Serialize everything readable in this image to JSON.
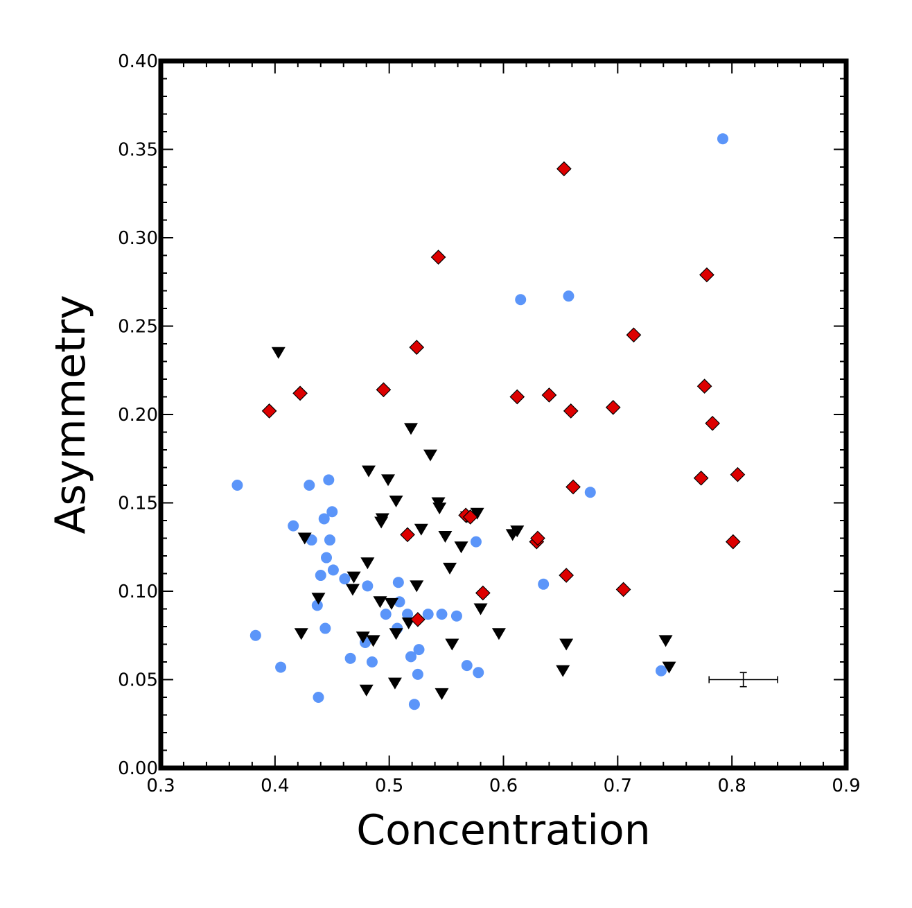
{
  "chart_data": {
    "type": "scatter",
    "title": "",
    "xlabel": "Concentration",
    "ylabel": "Asymmetry",
    "xlim": [
      0.3,
      0.9
    ],
    "ylim": [
      0.0,
      0.4
    ],
    "x_ticks": [
      "0.3",
      "0.4",
      "0.5",
      "0.6",
      "0.7",
      "0.8",
      "0.9"
    ],
    "y_ticks": [
      "0.00",
      "0.05",
      "0.10",
      "0.15",
      "0.20",
      "0.25",
      "0.30",
      "0.35",
      "0.40"
    ],
    "grid": false,
    "legend": "none",
    "series": [
      {
        "marker": "circle",
        "color": "#5b95f9",
        "points": [
          [
            0.367,
            0.16
          ],
          [
            0.383,
            0.075
          ],
          [
            0.405,
            0.057
          ],
          [
            0.416,
            0.137
          ],
          [
            0.43,
            0.16
          ],
          [
            0.432,
            0.129
          ],
          [
            0.437,
            0.092
          ],
          [
            0.438,
            0.04
          ],
          [
            0.44,
            0.109
          ],
          [
            0.443,
            0.141
          ],
          [
            0.444,
            0.079
          ],
          [
            0.445,
            0.119
          ],
          [
            0.447,
            0.163
          ],
          [
            0.448,
            0.129
          ],
          [
            0.45,
            0.145
          ],
          [
            0.451,
            0.112
          ],
          [
            0.461,
            0.107
          ],
          [
            0.466,
            0.062
          ],
          [
            0.479,
            0.071
          ],
          [
            0.481,
            0.103
          ],
          [
            0.485,
            0.06
          ],
          [
            0.497,
            0.087
          ],
          [
            0.507,
            0.079
          ],
          [
            0.508,
            0.105
          ],
          [
            0.509,
            0.094
          ],
          [
            0.516,
            0.087
          ],
          [
            0.519,
            0.063
          ],
          [
            0.522,
            0.036
          ],
          [
            0.525,
            0.053
          ],
          [
            0.526,
            0.067
          ],
          [
            0.534,
            0.087
          ],
          [
            0.546,
            0.087
          ],
          [
            0.559,
            0.086
          ],
          [
            0.568,
            0.058
          ],
          [
            0.576,
            0.128
          ],
          [
            0.578,
            0.054
          ],
          [
            0.615,
            0.265
          ],
          [
            0.635,
            0.104
          ],
          [
            0.657,
            0.267
          ],
          [
            0.676,
            0.156
          ],
          [
            0.738,
            0.055
          ],
          [
            0.792,
            0.356
          ]
        ]
      },
      {
        "marker": "triangle-down",
        "color": "#000000",
        "points": [
          [
            0.403,
            0.235
          ],
          [
            0.423,
            0.076
          ],
          [
            0.426,
            0.13
          ],
          [
            0.438,
            0.096
          ],
          [
            0.468,
            0.101
          ],
          [
            0.469,
            0.108
          ],
          [
            0.477,
            0.074
          ],
          [
            0.48,
            0.044
          ],
          [
            0.481,
            0.116
          ],
          [
            0.482,
            0.168
          ],
          [
            0.486,
            0.072
          ],
          [
            0.492,
            0.094
          ],
          [
            0.493,
            0.139
          ],
          [
            0.494,
            0.141
          ],
          [
            0.499,
            0.163
          ],
          [
            0.502,
            0.093
          ],
          [
            0.505,
            0.048
          ],
          [
            0.506,
            0.076
          ],
          [
            0.506,
            0.151
          ],
          [
            0.517,
            0.082
          ],
          [
            0.519,
            0.192
          ],
          [
            0.524,
            0.103
          ],
          [
            0.528,
            0.135
          ],
          [
            0.536,
            0.177
          ],
          [
            0.543,
            0.15
          ],
          [
            0.544,
            0.147
          ],
          [
            0.546,
            0.042
          ],
          [
            0.549,
            0.131
          ],
          [
            0.553,
            0.113
          ],
          [
            0.555,
            0.07
          ],
          [
            0.563,
            0.125
          ],
          [
            0.568,
            0.142
          ],
          [
            0.577,
            0.144
          ],
          [
            0.58,
            0.09
          ],
          [
            0.596,
            0.076
          ],
          [
            0.608,
            0.132
          ],
          [
            0.612,
            0.134
          ],
          [
            0.652,
            0.055
          ],
          [
            0.655,
            0.07
          ],
          [
            0.742,
            0.072
          ],
          [
            0.745,
            0.057
          ]
        ]
      },
      {
        "marker": "diamond",
        "color": "#dd0000",
        "points": [
          [
            0.395,
            0.202
          ],
          [
            0.422,
            0.212
          ],
          [
            0.495,
            0.214
          ],
          [
            0.516,
            0.132
          ],
          [
            0.524,
            0.238
          ],
          [
            0.525,
            0.084
          ],
          [
            0.543,
            0.289
          ],
          [
            0.567,
            0.143
          ],
          [
            0.571,
            0.142
          ],
          [
            0.582,
            0.099
          ],
          [
            0.612,
            0.21
          ],
          [
            0.629,
            0.128
          ],
          [
            0.63,
            0.13
          ],
          [
            0.64,
            0.211
          ],
          [
            0.653,
            0.339
          ],
          [
            0.655,
            0.109
          ],
          [
            0.659,
            0.202
          ],
          [
            0.661,
            0.159
          ],
          [
            0.696,
            0.204
          ],
          [
            0.705,
            0.101
          ],
          [
            0.714,
            0.245
          ],
          [
            0.773,
            0.164
          ],
          [
            0.776,
            0.216
          ],
          [
            0.778,
            0.279
          ],
          [
            0.783,
            0.195
          ],
          [
            0.801,
            0.128
          ],
          [
            0.805,
            0.166
          ]
        ]
      }
    ],
    "error_bar": {
      "x": 0.81,
      "y": 0.05,
      "xerr": 0.03,
      "yerr": 0.004
    }
  }
}
